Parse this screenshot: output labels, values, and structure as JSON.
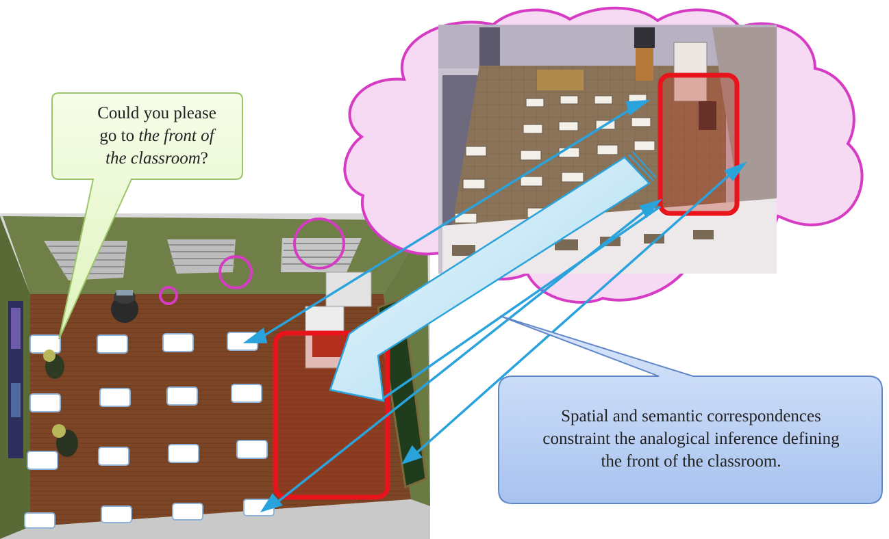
{
  "speech_bubble": {
    "line1": "Could you please",
    "line2_prefix": "go to ",
    "line2_italic": "the front of",
    "line3_italic": "the classroom",
    "line3_suffix": "?"
  },
  "note_callout": {
    "line1": "Spatial and semantic correspondences",
    "line2": "constraint the analogical inference defining",
    "line3": "the front of the classroom."
  },
  "colors": {
    "cloud_stroke": "#d63cc3",
    "cloud_fill": "#f6d9f2",
    "highlight_box": "#e8141b",
    "arrow": "#2aa3dc",
    "floor": "#7a4424",
    "wall": "#6d7d45",
    "speech_fill": "#eaf8cf",
    "note_fill": "#c2d6f6"
  }
}
